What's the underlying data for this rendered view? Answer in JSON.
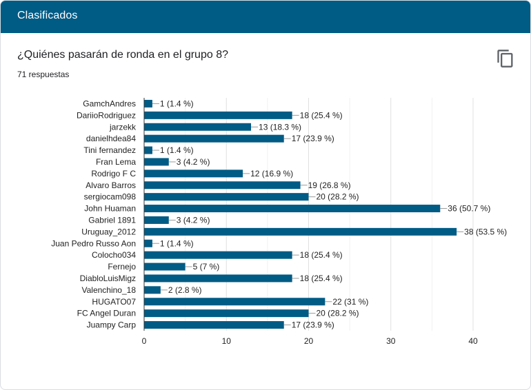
{
  "header": {
    "title": "Clasificados"
  },
  "question": {
    "title": "¿Quiénes pasarán de ronda en el grupo 8?",
    "responses": "71 respuestas"
  },
  "toolbar": {
    "copy_icon": "copy-icon"
  },
  "colors": {
    "header_bg": "#005b85",
    "bar": "#005b85",
    "grid": "#ececec"
  },
  "chart_data": {
    "type": "bar",
    "orientation": "horizontal",
    "title": "¿Quiénes pasarán de ronda en el grupo 8?",
    "xlabel": "",
    "ylabel": "",
    "xlim": [
      0,
      40
    ],
    "ticks": [
      0,
      10,
      20,
      30,
      40
    ],
    "grid": true,
    "categories": [
      "GamchAndres",
      "DariioRodriguez",
      "jarzekk",
      "danielhdea84",
      "Tini fernandez",
      "Fran Lema",
      "Rodrigo F C",
      "Alvaro Barros",
      "sergiocam098",
      "John Huaman",
      "Gabriel 1891",
      "Uruguay_2012",
      "Juan Pedro Russo Aon",
      "Colocho034",
      "Fernejo",
      "DiabloLuisMigz",
      "Valenchino_18",
      "HUGATO07",
      "FC Angel Duran",
      "Juampy Carp"
    ],
    "values": [
      1,
      18,
      13,
      17,
      1,
      3,
      12,
      19,
      20,
      36,
      3,
      38,
      1,
      18,
      5,
      18,
      2,
      22,
      20,
      17
    ],
    "labels": [
      "1 (1.4 %)",
      "18 (25.4 %)",
      "13 (18.3 %)",
      "17 (23.9 %)",
      "1 (1.4 %)",
      "3 (4.2 %)",
      "12 (16.9 %)",
      "19 (26.8 %)",
      "20 (28.2 %)",
      "36 (50.7 %)",
      "3 (4.2 %)",
      "38 (53.5 %)",
      "1 (1.4 %)",
      "18 (25.4 %)",
      "5 (7 %)",
      "18 (25.4 %)",
      "2 (2.8 %)",
      "22 (31 %)",
      "20 (28.2 %)",
      "17 (23.9 %)"
    ]
  }
}
